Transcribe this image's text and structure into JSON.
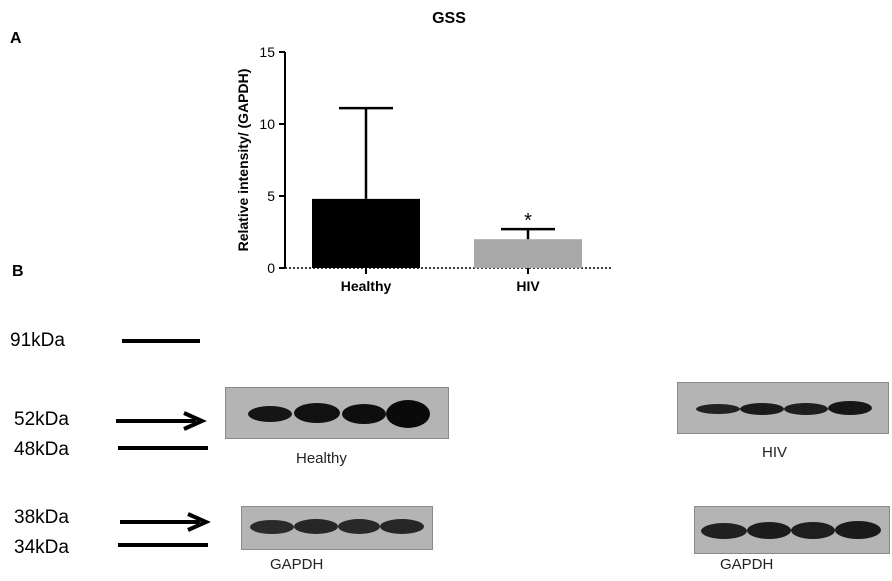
{
  "panels": {
    "a": "A",
    "b": "B"
  },
  "chart_data": {
    "type": "bar",
    "title": "GSS",
    "xlabel": "",
    "ylabel": "Relative intensity/ (GAPDH)",
    "categories": [
      "Healthy",
      "HIV"
    ],
    "values": [
      4.8,
      2.0
    ],
    "error_upper": [
      11.1,
      2.7
    ],
    "significance": [
      "",
      "*"
    ],
    "ylim": [
      0,
      15
    ],
    "yticks": [
      0,
      5,
      10,
      15
    ],
    "colors": [
      "#000000",
      "#a9a9a9"
    ],
    "grid": false,
    "legend": "none"
  },
  "blot": {
    "markers": [
      "91kDa",
      "52kDa",
      "48kDa",
      "38kDa",
      "34kDa"
    ],
    "captions": {
      "healthy": "Healthy",
      "hiv": "HIV",
      "gapdh_left": "GAPDH",
      "gapdh_right": "GAPDH"
    }
  }
}
